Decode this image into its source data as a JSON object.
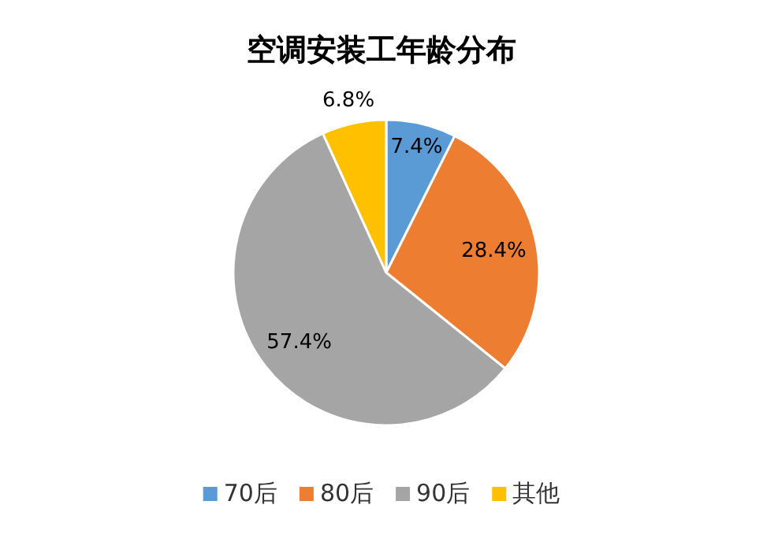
{
  "chart_data": {
    "type": "pie",
    "title": "空调安装工年龄分布",
    "categories": [
      "70后",
      "80后",
      "90后",
      "其他"
    ],
    "values": [
      7.4,
      28.4,
      57.4,
      6.8
    ],
    "value_labels": [
      "7.4%",
      "28.4%",
      "57.4%",
      "6.8%"
    ],
    "colors": [
      "#5b9bd5",
      "#ed7d31",
      "#a5a5a5",
      "#ffc000"
    ],
    "legend": "bottom"
  }
}
